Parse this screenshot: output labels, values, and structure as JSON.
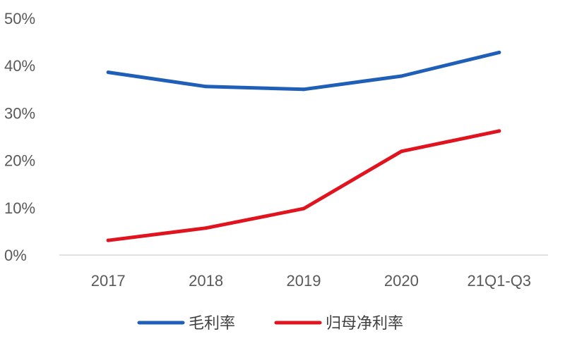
{
  "chart_data": {
    "type": "line",
    "categories": [
      "2017",
      "2018",
      "2019",
      "2020",
      "21Q1-Q3"
    ],
    "ylim": [
      0,
      50
    ],
    "yticks": [
      "0%",
      "10%",
      "20%",
      "30%",
      "40%",
      "50%"
    ],
    "grid": false,
    "legend_position": "bottom-center",
    "series": [
      {
        "name": "毛利率",
        "color": "#1f5fb8",
        "values": [
          38.6,
          35.6,
          35.0,
          37.8,
          42.8
        ]
      },
      {
        "name": "归母净利率",
        "color": "#e0141e",
        "values": [
          3.1,
          5.7,
          9.8,
          21.9,
          26.2
        ]
      }
    ]
  }
}
